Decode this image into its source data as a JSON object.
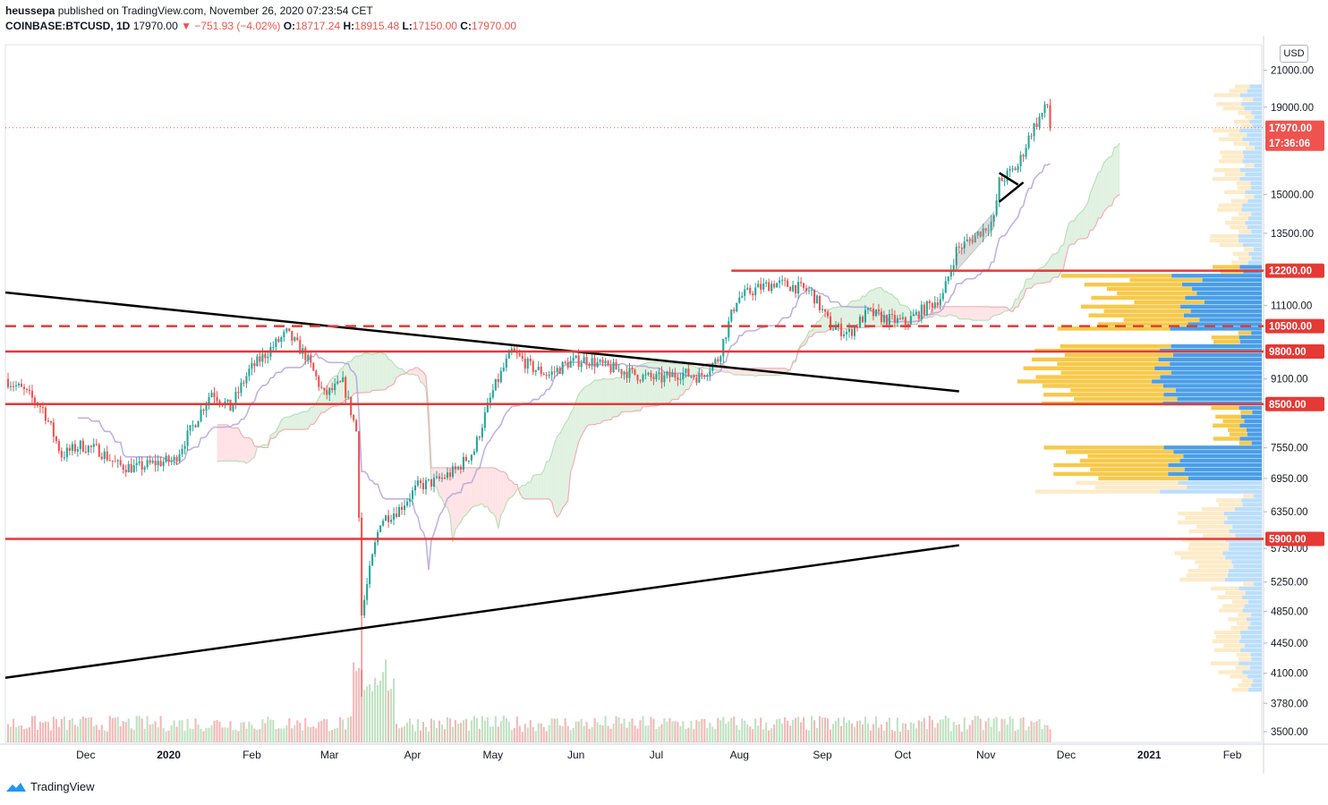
{
  "header": {
    "publisher": "heussepa",
    "published_text": "published on TradingView.com, November 26, 2020 07:23:54 CET",
    "symbol": "COINBASE:BTCUSD, 1D",
    "last_price": "17970.00",
    "change": "▼ −751.93 (−4.02%)",
    "o_label": "O:",
    "o_value": "18717.24",
    "h_label": "H:",
    "h_value": "18915.48",
    "l_label": "L:",
    "l_value": "17150.00",
    "c_label": "C:",
    "c_value": "17970.00"
  },
  "currency_button": "USD",
  "footer": {
    "brand": "TradingView"
  },
  "colors": {
    "up": "#26a69a",
    "down": "#ef5350",
    "level": "#e53935",
    "cloud_bull": "#c8e6c9",
    "cloud_bear": "#ffcdd2",
    "vp_yellow": "#f7c94b",
    "vp_blue": "#4a9ee8",
    "kijun": "#b39ddb"
  },
  "chart_data": {
    "type": "candlestick",
    "title": "COINBASE:BTCUSD, 1D",
    "x_ticks": [
      "Dec",
      "2020",
      "Feb",
      "Mar",
      "Apr",
      "May",
      "Jun",
      "Jul",
      "Aug",
      "Sep",
      "Oct",
      "Nov",
      "Dec",
      "2021",
      "Feb"
    ],
    "y_ticks": [
      "21000.00",
      "19000.00",
      "15000.00",
      "13500.00",
      "11100.00",
      "9100.00",
      "7550.00",
      "6950.00",
      "6350.00",
      "5750.00",
      "5250.00",
      "4850.00",
      "4450.00",
      "4100.00",
      "3780.00",
      "3500.00"
    ],
    "y_scale": "log",
    "y_range": [
      3400,
      22500
    ],
    "horizontal_levels": [
      {
        "label": "12200.00",
        "price": 12200,
        "style": "solid"
      },
      {
        "label": "10500.00",
        "price": 10500,
        "style": "dashed"
      },
      {
        "label": "9800.00",
        "price": 9800,
        "style": "solid"
      },
      {
        "label": "8500.00",
        "price": 8500,
        "style": "solid"
      },
      {
        "label": "5900.00",
        "price": 5900,
        "style": "solid"
      }
    ],
    "price_tag": {
      "label": "17970.00",
      "countdown": "17:36:06"
    },
    "trendlines": [
      {
        "name": "descending-resistance",
        "from": {
          "date": "2019-11-01",
          "price": 11500
        },
        "to": {
          "date": "2020-10-22",
          "price": 8800
        }
      },
      {
        "name": "ascending-support",
        "from": {
          "date": "2019-11-01",
          "price": 4050
        },
        "to": {
          "date": "2020-10-22",
          "price": 5800
        }
      }
    ],
    "price_path": [
      [
        "2019-11-01",
        9100
      ],
      [
        "2019-11-08",
        8800
      ],
      [
        "2019-11-15",
        8400
      ],
      [
        "2019-11-22",
        7400
      ],
      [
        "2019-11-29",
        7600
      ],
      [
        "2019-12-06",
        7500
      ],
      [
        "2019-12-13",
        7200
      ],
      [
        "2019-12-20",
        7150
      ],
      [
        "2019-12-27",
        7250
      ],
      [
        "2020-01-03",
        7300
      ],
      [
        "2020-01-10",
        8000
      ],
      [
        "2020-01-17",
        8800
      ],
      [
        "2020-01-24",
        8400
      ],
      [
        "2020-01-31",
        9300
      ],
      [
        "2020-02-07",
        9800
      ],
      [
        "2020-02-14",
        10300
      ],
      [
        "2020-02-21",
        9700
      ],
      [
        "2020-02-28",
        8700
      ],
      [
        "2020-03-06",
        9000
      ],
      [
        "2020-03-11",
        7900
      ],
      [
        "2020-03-13",
        4800
      ],
      [
        "2020-03-20",
        6200
      ],
      [
        "2020-03-27",
        6400
      ],
      [
        "2020-04-03",
        6800
      ],
      [
        "2020-04-10",
        6900
      ],
      [
        "2020-04-17",
        7100
      ],
      [
        "2020-04-24",
        7500
      ],
      [
        "2020-05-01",
        8800
      ],
      [
        "2020-05-08",
        9800
      ],
      [
        "2020-05-15",
        9400
      ],
      [
        "2020-05-22",
        9200
      ],
      [
        "2020-05-29",
        9500
      ],
      [
        "2020-06-05",
        9600
      ],
      [
        "2020-06-12",
        9400
      ],
      [
        "2020-06-19",
        9300
      ],
      [
        "2020-06-26",
        9150
      ],
      [
        "2020-07-03",
        9100
      ],
      [
        "2020-07-10",
        9250
      ],
      [
        "2020-07-17",
        9150
      ],
      [
        "2020-07-24",
        9600
      ],
      [
        "2020-07-31",
        11300
      ],
      [
        "2020-08-07",
        11600
      ],
      [
        "2020-08-14",
        11800
      ],
      [
        "2020-08-21",
        11700
      ],
      [
        "2020-08-28",
        11500
      ],
      [
        "2020-09-04",
        10500
      ],
      [
        "2020-09-11",
        10300
      ],
      [
        "2020-09-18",
        10900
      ],
      [
        "2020-09-25",
        10700
      ],
      [
        "2020-10-02",
        10600
      ],
      [
        "2020-10-09",
        11000
      ],
      [
        "2020-10-16",
        11400
      ],
      [
        "2020-10-21",
        12900
      ],
      [
        "2020-10-28",
        13400
      ],
      [
        "2020-11-04",
        14000
      ],
      [
        "2020-11-06",
        15500
      ],
      [
        "2020-11-13",
        16200
      ],
      [
        "2020-11-18",
        17800
      ],
      [
        "2020-11-24",
        19100
      ],
      [
        "2020-11-25",
        17970
      ]
    ]
  }
}
